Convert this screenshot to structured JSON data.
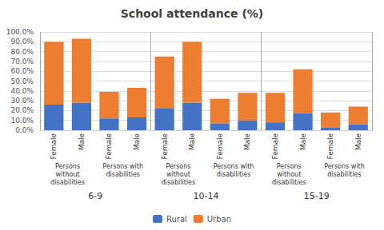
{
  "chart_data": {
    "type": "bar",
    "title": "School attendance (%)",
    "categories": [
      "Female",
      "Male",
      "Female",
      "Male",
      "Female",
      "Male",
      "Female",
      "Male",
      "Female",
      "Male",
      "Female",
      "Male"
    ],
    "category_levels": [
      [
        "Persons\nwithout\ndisabilities",
        "Persons with\ndisabilities",
        "Persons\nwithout\ndisabilities",
        "Persons with\ndisabilities",
        "Persons\nwithout\ndisabilities",
        "Persons with\ndisabilities"
      ],
      [
        "6-9",
        "10-14",
        "15-19"
      ]
    ],
    "series": [
      {
        "name": "Rural",
        "color": "#4472C4",
        "values": [
          26,
          28,
          12,
          13,
          22,
          28,
          7,
          10,
          8,
          17,
          3,
          6
        ]
      },
      {
        "name": "Urban",
        "color": "#ED7D31",
        "values": [
          64,
          65,
          27,
          30,
          53,
          62,
          25,
          28,
          30,
          45,
          15,
          18
        ]
      }
    ],
    "stacked": true,
    "ylim": [
      0,
      100
    ],
    "yticks": [
      {
        "value": 0,
        "label": "0.0%"
      },
      {
        "value": 10,
        "label": "10.0%"
      },
      {
        "value": 20,
        "label": "20.0%"
      },
      {
        "value": 30,
        "label": "30.0%"
      },
      {
        "value": 40,
        "label": "40.0%"
      },
      {
        "value": 50,
        "label": "50.0%"
      },
      {
        "value": 60,
        "label": "60.0%"
      },
      {
        "value": 70,
        "label": "70.0%"
      },
      {
        "value": 80,
        "label": "80.0%"
      },
      {
        "value": 90,
        "label": "90.0%"
      },
      {
        "value": 100,
        "label": "100.0%"
      }
    ],
    "grid": true,
    "legend": "bottom"
  }
}
